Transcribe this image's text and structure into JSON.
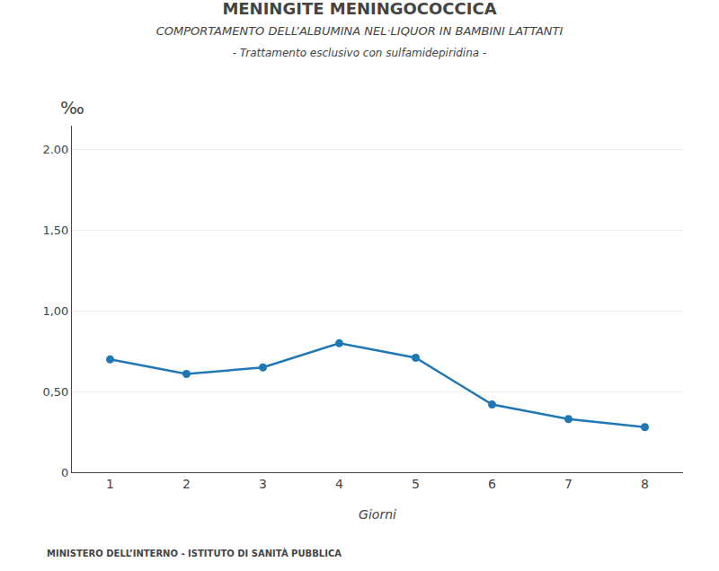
{
  "chart_data": {
    "type": "line",
    "title": "MENINGITE MENINGOCOCCICA",
    "subtitle": [
      "COMPORTAMENTO DELL’ALBUMINA NEL·LIQUOR IN BAMBINI LATTANTI",
      "- Trattamento esclusivo con sulfamidepiridina -"
    ],
    "annotations": [
      "MINISTERO DELL’INTERNO - ISTITUTO DI SANITÀ PUBBLICA"
    ],
    "xlabel": "Giorni",
    "ylabel": "‰",
    "x": [
      1,
      2,
      3,
      4,
      5,
      6,
      7,
      8
    ],
    "values": [
      0.7,
      0.61,
      0.65,
      0.8,
      0.71,
      0.42,
      0.33,
      0.28
    ],
    "xlim": [
      0.5,
      8.5
    ],
    "xticks": [
      1,
      2,
      3,
      4,
      5,
      6,
      7,
      8
    ],
    "ylim": [
      0,
      2.15
    ],
    "yticks": [
      0,
      {
        "value": 0.5,
        "label": "0,50"
      },
      {
        "value": 1.0,
        "label": "1,00"
      },
      {
        "value": 1.5,
        "label": "1,50"
      },
      {
        "value": 2.0,
        "label": "2.00"
      }
    ],
    "grid": true,
    "marker": "circle"
  }
}
